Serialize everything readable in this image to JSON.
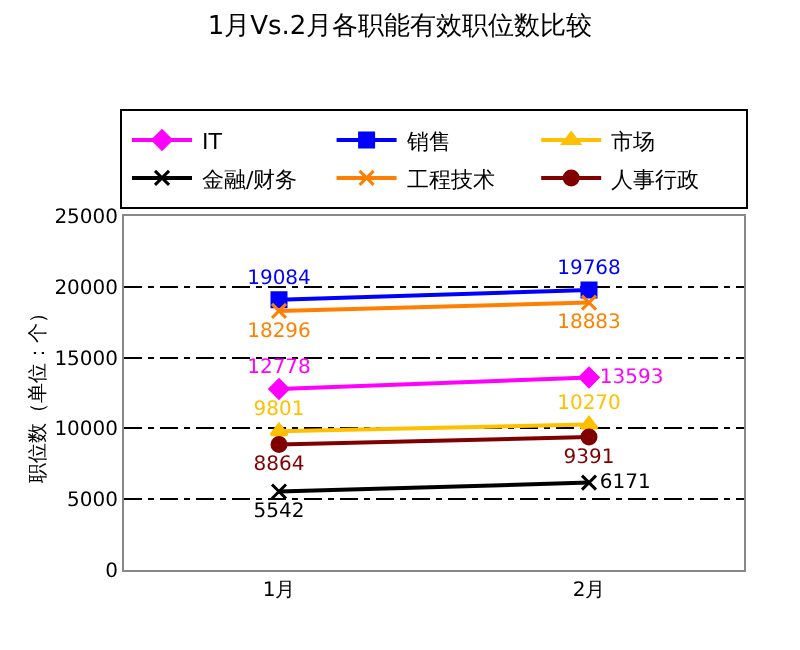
{
  "chart_data": {
    "type": "line",
    "title": "1月Vs.2月各职能有效职位数比较",
    "ylabel": "职位数（单位：个）",
    "categories": [
      "1月",
      "2月"
    ],
    "series": [
      {
        "name": "IT",
        "color": "#ff00ff",
        "marker": "diamond",
        "values": [
          12778,
          13593
        ]
      },
      {
        "name": "销售",
        "color": "#0000ff",
        "marker": "square",
        "values": [
          19084,
          19768
        ]
      },
      {
        "name": "市场",
        "color": "#ffc000",
        "marker": "triangle",
        "values": [
          9801,
          10270
        ]
      },
      {
        "name": "金融/财务",
        "color": "#000000",
        "marker": "cross",
        "values": [
          5542,
          6171
        ]
      },
      {
        "name": "工程技术",
        "color": "#ff8000",
        "marker": "cross",
        "values": [
          18296,
          18883
        ]
      },
      {
        "name": "人事行政",
        "color": "#800000",
        "marker": "circle",
        "values": [
          8864,
          9391
        ]
      }
    ],
    "ylim": [
      0,
      25000
    ],
    "yticks": [
      0,
      5000,
      10000,
      15000,
      20000,
      25000
    ],
    "grid": "y",
    "line_style": "solid",
    "legend": "top",
    "data_labels": true
  }
}
